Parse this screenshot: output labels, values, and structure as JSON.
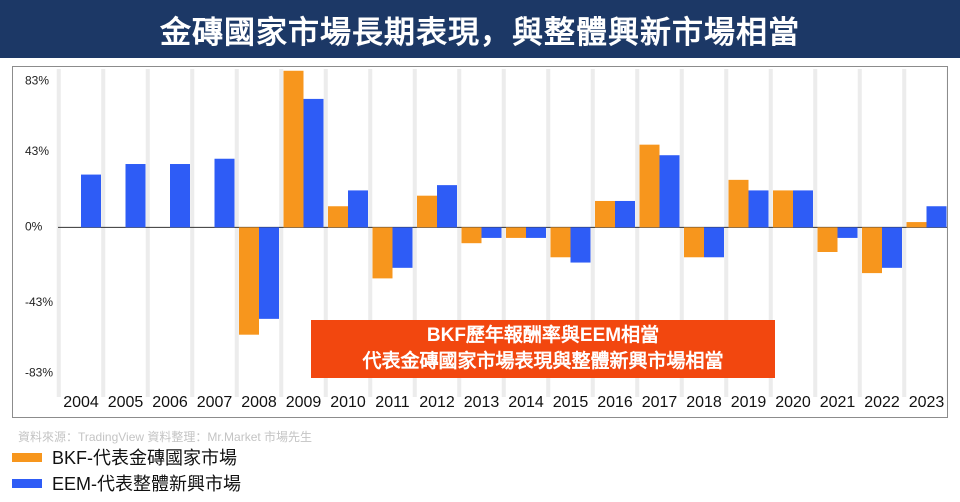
{
  "header": {
    "title": "金磚國家市場長期表現，與整體興新市場相當"
  },
  "colors": {
    "banner": "#1c3866",
    "bkf": "#f7961d",
    "eem": "#2e5cf6",
    "callout": "#f2470f",
    "gridline": "#ececec"
  },
  "chart_data": {
    "type": "bar",
    "categories": [
      "2004",
      "2005",
      "2006",
      "2007",
      "2008",
      "2009",
      "2010",
      "2011",
      "2012",
      "2013",
      "2014",
      "2015",
      "2016",
      "2017",
      "2018",
      "2019",
      "2020",
      "2021",
      "2022",
      "2023"
    ],
    "series": [
      {
        "name": "BKF-代表金磚國家市場",
        "color": "#f7961d",
        "values": [
          null,
          null,
          null,
          null,
          -61,
          89,
          12,
          -29,
          18,
          -9,
          -6,
          -17,
          15,
          47,
          -17,
          27,
          21,
          -14,
          -26,
          3
        ]
      },
      {
        "name": "EEM-代表整體新興市場",
        "color": "#2e5cf6",
        "values": [
          30,
          36,
          36,
          39,
          -52,
          73,
          21,
          -23,
          24,
          -6,
          -6,
          -20,
          15,
          41,
          -17,
          21,
          21,
          -6,
          -23,
          12
        ]
      }
    ],
    "yticks": [
      83,
      43,
      0,
      -43,
      -83
    ],
    "yticklabels": [
      "83%",
      "43%",
      "0%",
      "-43%",
      "-83%"
    ],
    "ylim": [
      -93,
      90
    ],
    "grid": "vertical",
    "legend": "bottom-left"
  },
  "callout": {
    "line1": "BKF歷年報酬率與EEM相當",
    "line2": "代表金磚國家市場表現與整體新興市場相當"
  },
  "source": "資料來源：TradingView  資料整理：Mr.Market 市場先生"
}
